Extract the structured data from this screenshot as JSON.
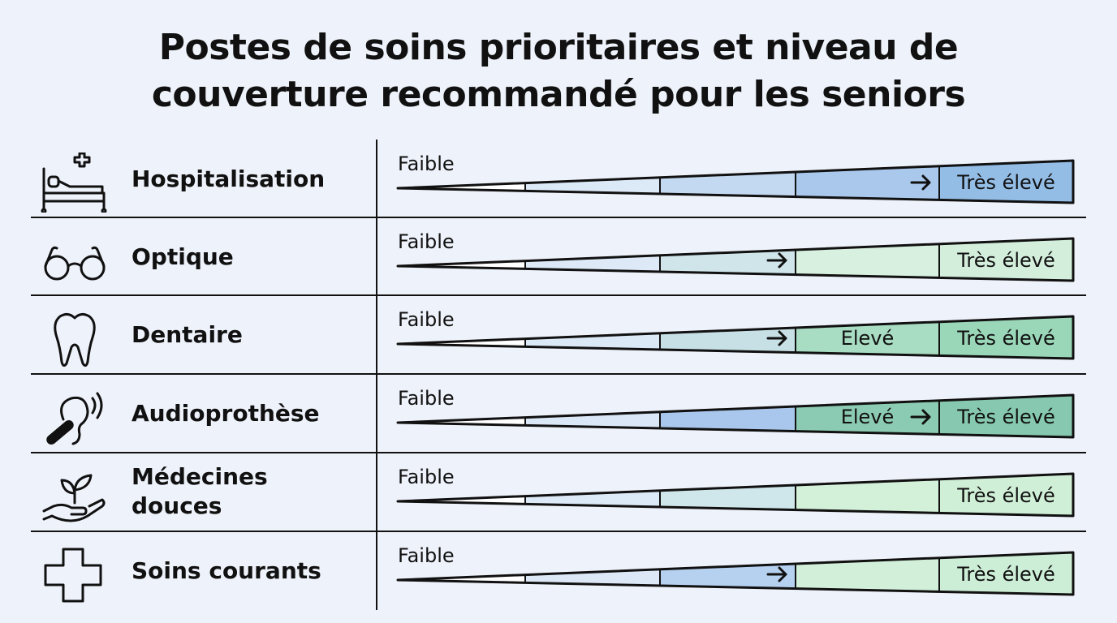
{
  "title": {
    "line1": "Postes de soins prioritaires et niveau de",
    "line2": "couverture recommandé pour les seniors"
  },
  "scale": {
    "low_label": "Faible",
    "high_label": "Très élevé",
    "mid_label": "Elevé"
  },
  "colors": {
    "blue": [
      "#e9f0fb",
      "#d3e3f7",
      "#b4cff0",
      "#9cc1e8"
    ],
    "green": [
      "#d9eef0",
      "#c2e6e2",
      "#cdeed8",
      "#bfe8cc"
    ],
    "teal": "#86cbb3",
    "outline": "#111111"
  },
  "rows": [
    {
      "id": "hospitalisation",
      "label": "Hospitalisation",
      "icon": "hospital-bed-icon",
      "fills": [
        "#ffffff",
        "#dce9f7",
        "#c3d8f1",
        "#a9c8ec",
        "#94bde6"
      ],
      "mid_label": "",
      "arrow_segment": 3
    },
    {
      "id": "optique",
      "label": "Optique",
      "icon": "glasses-icon",
      "fills": [
        "#ffffff",
        "#dde9f6",
        "#cfe5ea",
        "#d7f0df",
        "#d3efdc"
      ],
      "mid_label": "",
      "arrow_segment": 2
    },
    {
      "id": "dentaire",
      "label": "Dentaire",
      "icon": "tooth-icon",
      "fills": [
        "#ffffff",
        "#dbe8f6",
        "#c7e0e6",
        "#a8dcc3",
        "#9ad6b8"
      ],
      "mid_label": "Elevé",
      "arrow_segment": 2
    },
    {
      "id": "audioprothese",
      "label": "Audioprothèse",
      "icon": "hearing-aid-icon",
      "fills": [
        "#ffffff",
        "#dae7f7",
        "#a9c7ec",
        "#8ccbb3",
        "#86c9b0"
      ],
      "mid_label": "Elevé",
      "arrow_segment": 3
    },
    {
      "id": "medecines-douces",
      "label": [
        "Médecines",
        "douces"
      ],
      "icon": "plant-hand-icon",
      "fills": [
        "#ffffff",
        "#dce9f6",
        "#cfe6ea",
        "#d3f0d9",
        "#d0efd7"
      ],
      "mid_label": "",
      "arrow_segment": -1
    },
    {
      "id": "soins-courants",
      "label": "Soins courants",
      "icon": "medical-cross-icon",
      "fills": [
        "#ffffff",
        "#dde8f7",
        "#b6d1f0",
        "#d2f0d9",
        "#cdeed6"
      ],
      "mid_label": "",
      "arrow_segment": 2
    }
  ]
}
